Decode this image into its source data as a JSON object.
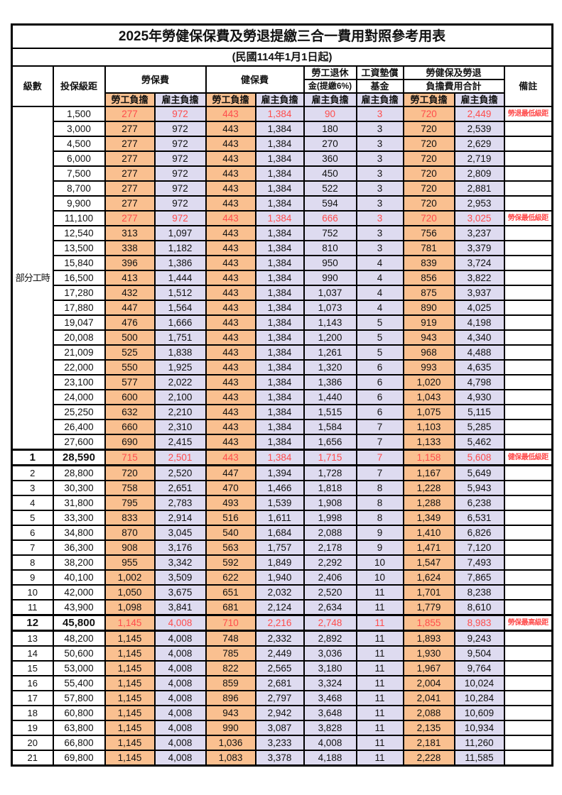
{
  "title": "2025年勞健保保費及勞退提繳三合一費用對照參考用表",
  "subtitle": "(民國114年1月1日起)",
  "colors": {
    "employee_col_bg": "#FAC090",
    "employer_col_bg": "#DEDBF0",
    "highlight_text": "#FF4C4C",
    "border": "#000000"
  },
  "header": {
    "level": "級數",
    "bracket": "投保級距",
    "labor_ins": "勞保費",
    "health_ins": "健保費",
    "pension_line1": "勞工退休",
    "pension_line2": "金(提繳6%)",
    "wage_fund_line1": "工資墊償",
    "wage_fund_line2": "基金",
    "total_line1": "勞健保及勞退",
    "total_line2": "負擔費用合計",
    "remark": "備註",
    "employee": "勞工負擔",
    "employer": "雇主負擔"
  },
  "group_label": "部分工時",
  "group_rowspan": 23,
  "rows": [
    {
      "level": null,
      "bracket": "1,500",
      "values": [
        "277",
        "972",
        "443",
        "1,384",
        "90",
        "3",
        "720",
        "2,449"
      ],
      "remark": "勞退最低級距",
      "red": true,
      "bold": false
    },
    {
      "level": null,
      "bracket": "3,000",
      "values": [
        "277",
        "972",
        "443",
        "1,384",
        "180",
        "3",
        "720",
        "2,539"
      ],
      "remark": "",
      "red": false,
      "bold": false
    },
    {
      "level": null,
      "bracket": "4,500",
      "values": [
        "277",
        "972",
        "443",
        "1,384",
        "270",
        "3",
        "720",
        "2,629"
      ],
      "remark": "",
      "red": false,
      "bold": false
    },
    {
      "level": null,
      "bracket": "6,000",
      "values": [
        "277",
        "972",
        "443",
        "1,384",
        "360",
        "3",
        "720",
        "2,719"
      ],
      "remark": "",
      "red": false,
      "bold": false
    },
    {
      "level": null,
      "bracket": "7,500",
      "values": [
        "277",
        "972",
        "443",
        "1,384",
        "450",
        "3",
        "720",
        "2,809"
      ],
      "remark": "",
      "red": false,
      "bold": false
    },
    {
      "level": null,
      "bracket": "8,700",
      "values": [
        "277",
        "972",
        "443",
        "1,384",
        "522",
        "3",
        "720",
        "2,881"
      ],
      "remark": "",
      "red": false,
      "bold": false
    },
    {
      "level": null,
      "bracket": "9,900",
      "values": [
        "277",
        "972",
        "443",
        "1,384",
        "594",
        "3",
        "720",
        "2,953"
      ],
      "remark": "",
      "red": false,
      "bold": false
    },
    {
      "level": null,
      "bracket": "11,100",
      "values": [
        "277",
        "972",
        "443",
        "1,384",
        "666",
        "3",
        "720",
        "3,025"
      ],
      "remark": "勞保最低級距",
      "red": true,
      "bold": false
    },
    {
      "level": null,
      "bracket": "12,540",
      "values": [
        "313",
        "1,097",
        "443",
        "1,384",
        "752",
        "3",
        "756",
        "3,237"
      ],
      "remark": "",
      "red": false,
      "bold": false
    },
    {
      "level": null,
      "bracket": "13,500",
      "values": [
        "338",
        "1,182",
        "443",
        "1,384",
        "810",
        "3",
        "781",
        "3,379"
      ],
      "remark": "",
      "red": false,
      "bold": false
    },
    {
      "level": null,
      "bracket": "15,840",
      "values": [
        "396",
        "1,386",
        "443",
        "1,384",
        "950",
        "4",
        "839",
        "3,724"
      ],
      "remark": "",
      "red": false,
      "bold": false
    },
    {
      "level": null,
      "bracket": "16,500",
      "values": [
        "413",
        "1,444",
        "443",
        "1,384",
        "990",
        "4",
        "856",
        "3,822"
      ],
      "remark": "",
      "red": false,
      "bold": false
    },
    {
      "level": null,
      "bracket": "17,280",
      "values": [
        "432",
        "1,512",
        "443",
        "1,384",
        "1,037",
        "4",
        "875",
        "3,937"
      ],
      "remark": "",
      "red": false,
      "bold": false
    },
    {
      "level": null,
      "bracket": "17,880",
      "values": [
        "447",
        "1,564",
        "443",
        "1,384",
        "1,073",
        "4",
        "890",
        "4,025"
      ],
      "remark": "",
      "red": false,
      "bold": false
    },
    {
      "level": null,
      "bracket": "19,047",
      "values": [
        "476",
        "1,666",
        "443",
        "1,384",
        "1,143",
        "5",
        "919",
        "4,198"
      ],
      "remark": "",
      "red": false,
      "bold": false
    },
    {
      "level": null,
      "bracket": "20,008",
      "values": [
        "500",
        "1,751",
        "443",
        "1,384",
        "1,200",
        "5",
        "943",
        "4,340"
      ],
      "remark": "",
      "red": false,
      "bold": false
    },
    {
      "level": null,
      "bracket": "21,009",
      "values": [
        "525",
        "1,838",
        "443",
        "1,384",
        "1,261",
        "5",
        "968",
        "4,488"
      ],
      "remark": "",
      "red": false,
      "bold": false
    },
    {
      "level": null,
      "bracket": "22,000",
      "values": [
        "550",
        "1,925",
        "443",
        "1,384",
        "1,320",
        "6",
        "993",
        "4,635"
      ],
      "remark": "",
      "red": false,
      "bold": false
    },
    {
      "level": null,
      "bracket": "23,100",
      "values": [
        "577",
        "2,022",
        "443",
        "1,384",
        "1,386",
        "6",
        "1,020",
        "4,798"
      ],
      "remark": "",
      "red": false,
      "bold": false
    },
    {
      "level": null,
      "bracket": "24,000",
      "values": [
        "600",
        "2,100",
        "443",
        "1,384",
        "1,440",
        "6",
        "1,043",
        "4,930"
      ],
      "remark": "",
      "red": false,
      "bold": false
    },
    {
      "level": null,
      "bracket": "25,250",
      "values": [
        "632",
        "2,210",
        "443",
        "1,384",
        "1,515",
        "6",
        "1,075",
        "5,115"
      ],
      "remark": "",
      "red": false,
      "bold": false
    },
    {
      "level": null,
      "bracket": "26,400",
      "values": [
        "660",
        "2,310",
        "443",
        "1,384",
        "1,584",
        "7",
        "1,103",
        "5,285"
      ],
      "remark": "",
      "red": false,
      "bold": false
    },
    {
      "level": null,
      "bracket": "27,600",
      "values": [
        "690",
        "2,415",
        "443",
        "1,384",
        "1,656",
        "7",
        "1,133",
        "5,462"
      ],
      "remark": "",
      "red": false,
      "bold": false
    },
    {
      "level": "1",
      "bracket": "28,590",
      "values": [
        "715",
        "2,501",
        "443",
        "1,384",
        "1,715",
        "7",
        "1,158",
        "5,608"
      ],
      "remark": "健保最低級距",
      "red": true,
      "bold": true
    },
    {
      "level": "2",
      "bracket": "28,800",
      "values": [
        "720",
        "2,520",
        "447",
        "1,394",
        "1,728",
        "7",
        "1,167",
        "5,649"
      ],
      "remark": "",
      "red": false,
      "bold": false
    },
    {
      "level": "3",
      "bracket": "30,300",
      "values": [
        "758",
        "2,651",
        "470",
        "1,466",
        "1,818",
        "8",
        "1,228",
        "5,943"
      ],
      "remark": "",
      "red": false,
      "bold": false
    },
    {
      "level": "4",
      "bracket": "31,800",
      "values": [
        "795",
        "2,783",
        "493",
        "1,539",
        "1,908",
        "8",
        "1,288",
        "6,238"
      ],
      "remark": "",
      "red": false,
      "bold": false
    },
    {
      "level": "5",
      "bracket": "33,300",
      "values": [
        "833",
        "2,914",
        "516",
        "1,611",
        "1,998",
        "8",
        "1,349",
        "6,531"
      ],
      "remark": "",
      "red": false,
      "bold": false
    },
    {
      "level": "6",
      "bracket": "34,800",
      "values": [
        "870",
        "3,045",
        "540",
        "1,684",
        "2,088",
        "9",
        "1,410",
        "6,826"
      ],
      "remark": "",
      "red": false,
      "bold": false
    },
    {
      "level": "7",
      "bracket": "36,300",
      "values": [
        "908",
        "3,176",
        "563",
        "1,757",
        "2,178",
        "9",
        "1,471",
        "7,120"
      ],
      "remark": "",
      "red": false,
      "bold": false
    },
    {
      "level": "8",
      "bracket": "38,200",
      "values": [
        "955",
        "3,342",
        "592",
        "1,849",
        "2,292",
        "10",
        "1,547",
        "7,493"
      ],
      "remark": "",
      "red": false,
      "bold": false
    },
    {
      "level": "9",
      "bracket": "40,100",
      "values": [
        "1,002",
        "3,509",
        "622",
        "1,940",
        "2,406",
        "10",
        "1,624",
        "7,865"
      ],
      "remark": "",
      "red": false,
      "bold": false
    },
    {
      "level": "10",
      "bracket": "42,000",
      "values": [
        "1,050",
        "3,675",
        "651",
        "2,032",
        "2,520",
        "11",
        "1,701",
        "8,238"
      ],
      "remark": "",
      "red": false,
      "bold": false
    },
    {
      "level": "11",
      "bracket": "43,900",
      "values": [
        "1,098",
        "3,841",
        "681",
        "2,124",
        "2,634",
        "11",
        "1,779",
        "8,610"
      ],
      "remark": "",
      "red": false,
      "bold": false
    },
    {
      "level": "12",
      "bracket": "45,800",
      "values": [
        "1,145",
        "4,008",
        "710",
        "2,216",
        "2,748",
        "11",
        "1,855",
        "8,983"
      ],
      "remark": "勞保最高級距",
      "red": true,
      "bold": true
    },
    {
      "level": "13",
      "bracket": "48,200",
      "values": [
        "1,145",
        "4,008",
        "748",
        "2,332",
        "2,892",
        "11",
        "1,893",
        "9,243"
      ],
      "remark": "",
      "red": false,
      "bold": false
    },
    {
      "level": "14",
      "bracket": "50,600",
      "values": [
        "1,145",
        "4,008",
        "785",
        "2,449",
        "3,036",
        "11",
        "1,930",
        "9,504"
      ],
      "remark": "",
      "red": false,
      "bold": false
    },
    {
      "level": "15",
      "bracket": "53,000",
      "values": [
        "1,145",
        "4,008",
        "822",
        "2,565",
        "3,180",
        "11",
        "1,967",
        "9,764"
      ],
      "remark": "",
      "red": false,
      "bold": false
    },
    {
      "level": "16",
      "bracket": "55,400",
      "values": [
        "1,145",
        "4,008",
        "859",
        "2,681",
        "3,324",
        "11",
        "2,004",
        "10,024"
      ],
      "remark": "",
      "red": false,
      "bold": false
    },
    {
      "level": "17",
      "bracket": "57,800",
      "values": [
        "1,145",
        "4,008",
        "896",
        "2,797",
        "3,468",
        "11",
        "2,041",
        "10,284"
      ],
      "remark": "",
      "red": false,
      "bold": false
    },
    {
      "level": "18",
      "bracket": "60,800",
      "values": [
        "1,145",
        "4,008",
        "943",
        "2,942",
        "3,648",
        "11",
        "2,088",
        "10,609"
      ],
      "remark": "",
      "red": false,
      "bold": false
    },
    {
      "level": "19",
      "bracket": "63,800",
      "values": [
        "1,145",
        "4,008",
        "990",
        "3,087",
        "3,828",
        "11",
        "2,135",
        "10,934"
      ],
      "remark": "",
      "red": false,
      "bold": false
    },
    {
      "level": "20",
      "bracket": "66,800",
      "values": [
        "1,145",
        "4,008",
        "1,036",
        "3,233",
        "4,008",
        "11",
        "2,181",
        "11,260"
      ],
      "remark": "",
      "red": false,
      "bold": false
    },
    {
      "level": "21",
      "bracket": "69,800",
      "values": [
        "1,145",
        "4,008",
        "1,083",
        "3,378",
        "4,188",
        "11",
        "2,228",
        "11,585"
      ],
      "remark": "",
      "red": false,
      "bold": false
    }
  ]
}
